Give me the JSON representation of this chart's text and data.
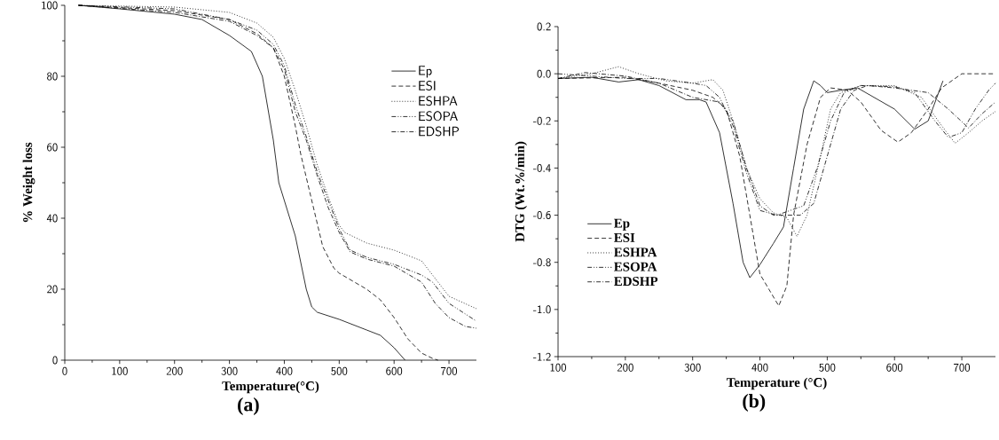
{
  "chart_data": [
    {
      "type": "line",
      "xlabel": "Temperature(°C)",
      "ylabel": "% Weight loss",
      "annotations": [
        "(a)"
      ],
      "xlim": [
        0,
        750
      ],
      "xticks": [
        0,
        100,
        200,
        300,
        400,
        500,
        600,
        700
      ],
      "ylim": [
        0,
        100
      ],
      "yticks": [
        0,
        20,
        40,
        60,
        80,
        100
      ],
      "legend": "top right",
      "series": [
        {
          "name": "Ep",
          "color": "#000000",
          "line_style": "solid",
          "x": [
            25,
            100,
            200,
            250,
            300,
            340,
            360,
            380,
            390,
            400,
            420,
            440,
            450,
            460,
            500,
            550,
            575,
            600,
            620
          ],
          "values": [
            100,
            99,
            97.5,
            96,
            91.5,
            87,
            80,
            62,
            50,
            45,
            35,
            20,
            15,
            13.5,
            11.5,
            8.5,
            7,
            3.5,
            0
          ]
        },
        {
          "name": "ESI",
          "color": "#000000",
          "line_style": "dashed",
          "x": [
            25,
            200,
            300,
            350,
            380,
            400,
            420,
            430,
            450,
            470,
            490,
            500,
            550,
            575,
            600,
            625,
            650,
            670,
            680
          ],
          "values": [
            100,
            98.5,
            96,
            92,
            88,
            80,
            66,
            58,
            45,
            32,
            26,
            24.5,
            20,
            17,
            12,
            6,
            2,
            0.5,
            0
          ]
        },
        {
          "name": "ESHPA",
          "color": "#000000",
          "line_style": "dotted",
          "x": [
            25,
            200,
            300,
            350,
            380,
            400,
            420,
            440,
            460,
            480,
            500,
            510,
            550,
            600,
            650,
            680,
            700,
            750
          ],
          "values": [
            100,
            99.5,
            98,
            95,
            91,
            85,
            76,
            66,
            55,
            46,
            38,
            36,
            33,
            31,
            28,
            22,
            18,
            14.5
          ]
        },
        {
          "name": "ESOPA",
          "color": "#000000",
          "line_style": "dashdotdotted",
          "x": [
            25,
            200,
            300,
            350,
            380,
            400,
            420,
            440,
            460,
            480,
            500,
            520,
            550,
            600,
            650,
            670,
            700,
            750
          ],
          "values": [
            100,
            99,
            96,
            93,
            89,
            83,
            72,
            63,
            53,
            45,
            37,
            31,
            29,
            27,
            24,
            22,
            16,
            11
          ]
        },
        {
          "name": "EDSHP",
          "color": "#000000",
          "line_style": "dashdotted",
          "x": [
            25,
            200,
            300,
            350,
            380,
            400,
            420,
            440,
            460,
            480,
            500,
            520,
            550,
            600,
            650,
            675,
            700,
            730,
            750
          ],
          "values": [
            100,
            98,
            95.5,
            91.5,
            88,
            82,
            70,
            62,
            52,
            43,
            36,
            30.5,
            28.5,
            26.5,
            22,
            16,
            12,
            9.5,
            9
          ]
        }
      ]
    },
    {
      "type": "line",
      "xlabel": "Temperature (°C)",
      "ylabel": "DTG (Wt.%/min)",
      "annotations": [
        "(b)"
      ],
      "xlim": [
        100,
        750
      ],
      "xticks": [
        100,
        200,
        300,
        400,
        500,
        600,
        700
      ],
      "ylim": [
        -1.2,
        0.2
      ],
      "yticks": [
        -1.2,
        {
          "value": -1,
          "label": "-1.0"
        },
        -0.8,
        -0.6,
        -0.4,
        -0.2,
        {
          "value": 0,
          "label": "0.0"
        },
        0.2
      ],
      "legend": "bottom left",
      "series": [
        {
          "name": "Ep",
          "color": "#000000",
          "line_style": "solid",
          "x": [
            100,
            150,
            190,
            220,
            250,
            290,
            310,
            320,
            340,
            360,
            375,
            385,
            400,
            420,
            435,
            450,
            465,
            480,
            490,
            500,
            520,
            545,
            600,
            630,
            650,
            672
          ],
          "values": [
            -0.02,
            -0.015,
            -0.035,
            -0.025,
            -0.05,
            -0.11,
            -0.11,
            -0.12,
            -0.25,
            -0.55,
            -0.8,
            -0.865,
            -0.81,
            -0.72,
            -0.65,
            -0.4,
            -0.15,
            -0.03,
            -0.05,
            -0.08,
            -0.07,
            -0.06,
            -0.15,
            -0.235,
            -0.2,
            -0.03
          ]
        },
        {
          "name": "ESI",
          "color": "#000000",
          "line_style": "dashed",
          "x": [
            100,
            200,
            250,
            300,
            330,
            350,
            370,
            385,
            400,
            428,
            440,
            450,
            470,
            490,
            505,
            530,
            550,
            580,
            605,
            625,
            650,
            670,
            700,
            750
          ],
          "values": [
            -0.02,
            -0.015,
            -0.04,
            -0.07,
            -0.1,
            -0.15,
            -0.35,
            -0.6,
            -0.85,
            -0.985,
            -0.9,
            -0.6,
            -0.3,
            -0.1,
            -0.06,
            -0.07,
            -0.12,
            -0.24,
            -0.29,
            -0.25,
            -0.15,
            -0.06,
            0,
            0
          ]
        },
        {
          "name": "ESHPA",
          "color": "#000000",
          "line_style": "dotted",
          "x": [
            100,
            150,
            190,
            220,
            260,
            300,
            320,
            330,
            345,
            360,
            380,
            400,
            420,
            440,
            455,
            470,
            490,
            505,
            520,
            550,
            600,
            640,
            670,
            690,
            710,
            730,
            750
          ],
          "values": [
            -0.02,
            0,
            0.03,
            0,
            -0.03,
            -0.04,
            -0.03,
            -0.025,
            -0.07,
            -0.2,
            -0.4,
            -0.53,
            -0.59,
            -0.61,
            -0.69,
            -0.6,
            -0.35,
            -0.15,
            -0.08,
            -0.05,
            -0.05,
            -0.1,
            -0.22,
            -0.295,
            -0.25,
            -0.2,
            -0.16
          ]
        },
        {
          "name": "ESOPA",
          "color": "#000000",
          "line_style": "dashdotdotted",
          "x": [
            100,
            150,
            200,
            250,
            300,
            320,
            340,
            360,
            380,
            400,
            425,
            445,
            465,
            485,
            505,
            525,
            550,
            600,
            630,
            660,
            680,
            700,
            720,
            740,
            750
          ],
          "values": [
            0,
            -0.01,
            -0.02,
            -0.02,
            -0.04,
            -0.05,
            -0.1,
            -0.22,
            -0.42,
            -0.58,
            -0.6,
            -0.58,
            -0.56,
            -0.4,
            -0.2,
            -0.08,
            -0.05,
            -0.055,
            -0.08,
            -0.2,
            -0.27,
            -0.25,
            -0.15,
            -0.07,
            -0.04
          ]
        },
        {
          "name": "EDSHP",
          "color": "#000000",
          "line_style": "dashdotted",
          "x": [
            100,
            140,
            200,
            250,
            300,
            340,
            360,
            380,
            400,
            420,
            440,
            460,
            480,
            500,
            520,
            540,
            560,
            600,
            650,
            680,
            710,
            730,
            750
          ],
          "values": [
            -0.02,
            0.005,
            -0.01,
            -0.04,
            -0.1,
            -0.12,
            -0.2,
            -0.4,
            -0.56,
            -0.6,
            -0.6,
            -0.6,
            -0.55,
            -0.35,
            -0.15,
            -0.07,
            -0.05,
            -0.06,
            -0.08,
            -0.15,
            -0.23,
            -0.17,
            -0.12
          ]
        }
      ]
    }
  ]
}
